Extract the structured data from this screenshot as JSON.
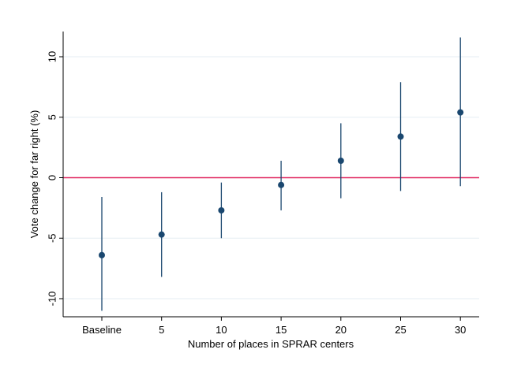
{
  "chart_data": {
    "type": "scatter",
    "subtype": "point-with-confidence-interval",
    "title": "",
    "xlabel": "Number of places in SPRAR centers",
    "ylabel": "Vote change for far right (%)",
    "categories": [
      "Baseline",
      "5",
      "10",
      "15",
      "20",
      "25",
      "30"
    ],
    "series": [
      {
        "estimates": [
          -6.4,
          -4.7,
          -2.7,
          -0.6,
          1.4,
          3.4,
          5.4
        ],
        "ci_lower": [
          -11.0,
          -8.2,
          -5.0,
          -2.7,
          -1.7,
          -1.1,
          -0.7
        ],
        "ci_upper": [
          -1.6,
          -1.2,
          -0.4,
          1.4,
          4.5,
          7.9,
          11.6
        ]
      }
    ],
    "x_positions": [
      0,
      1,
      2,
      3,
      4,
      5,
      6
    ],
    "ylim": [
      -11,
      12
    ],
    "yticks": [
      -10,
      -5,
      0,
      5,
      10
    ],
    "reference_line": {
      "y": 0,
      "color": "#e0245e"
    },
    "grid": true,
    "legend": "none",
    "colors": {
      "marker": "#1a476f",
      "error_bar": "#1a476f",
      "grid": "#e6eef3",
      "axis": "#000000"
    }
  }
}
